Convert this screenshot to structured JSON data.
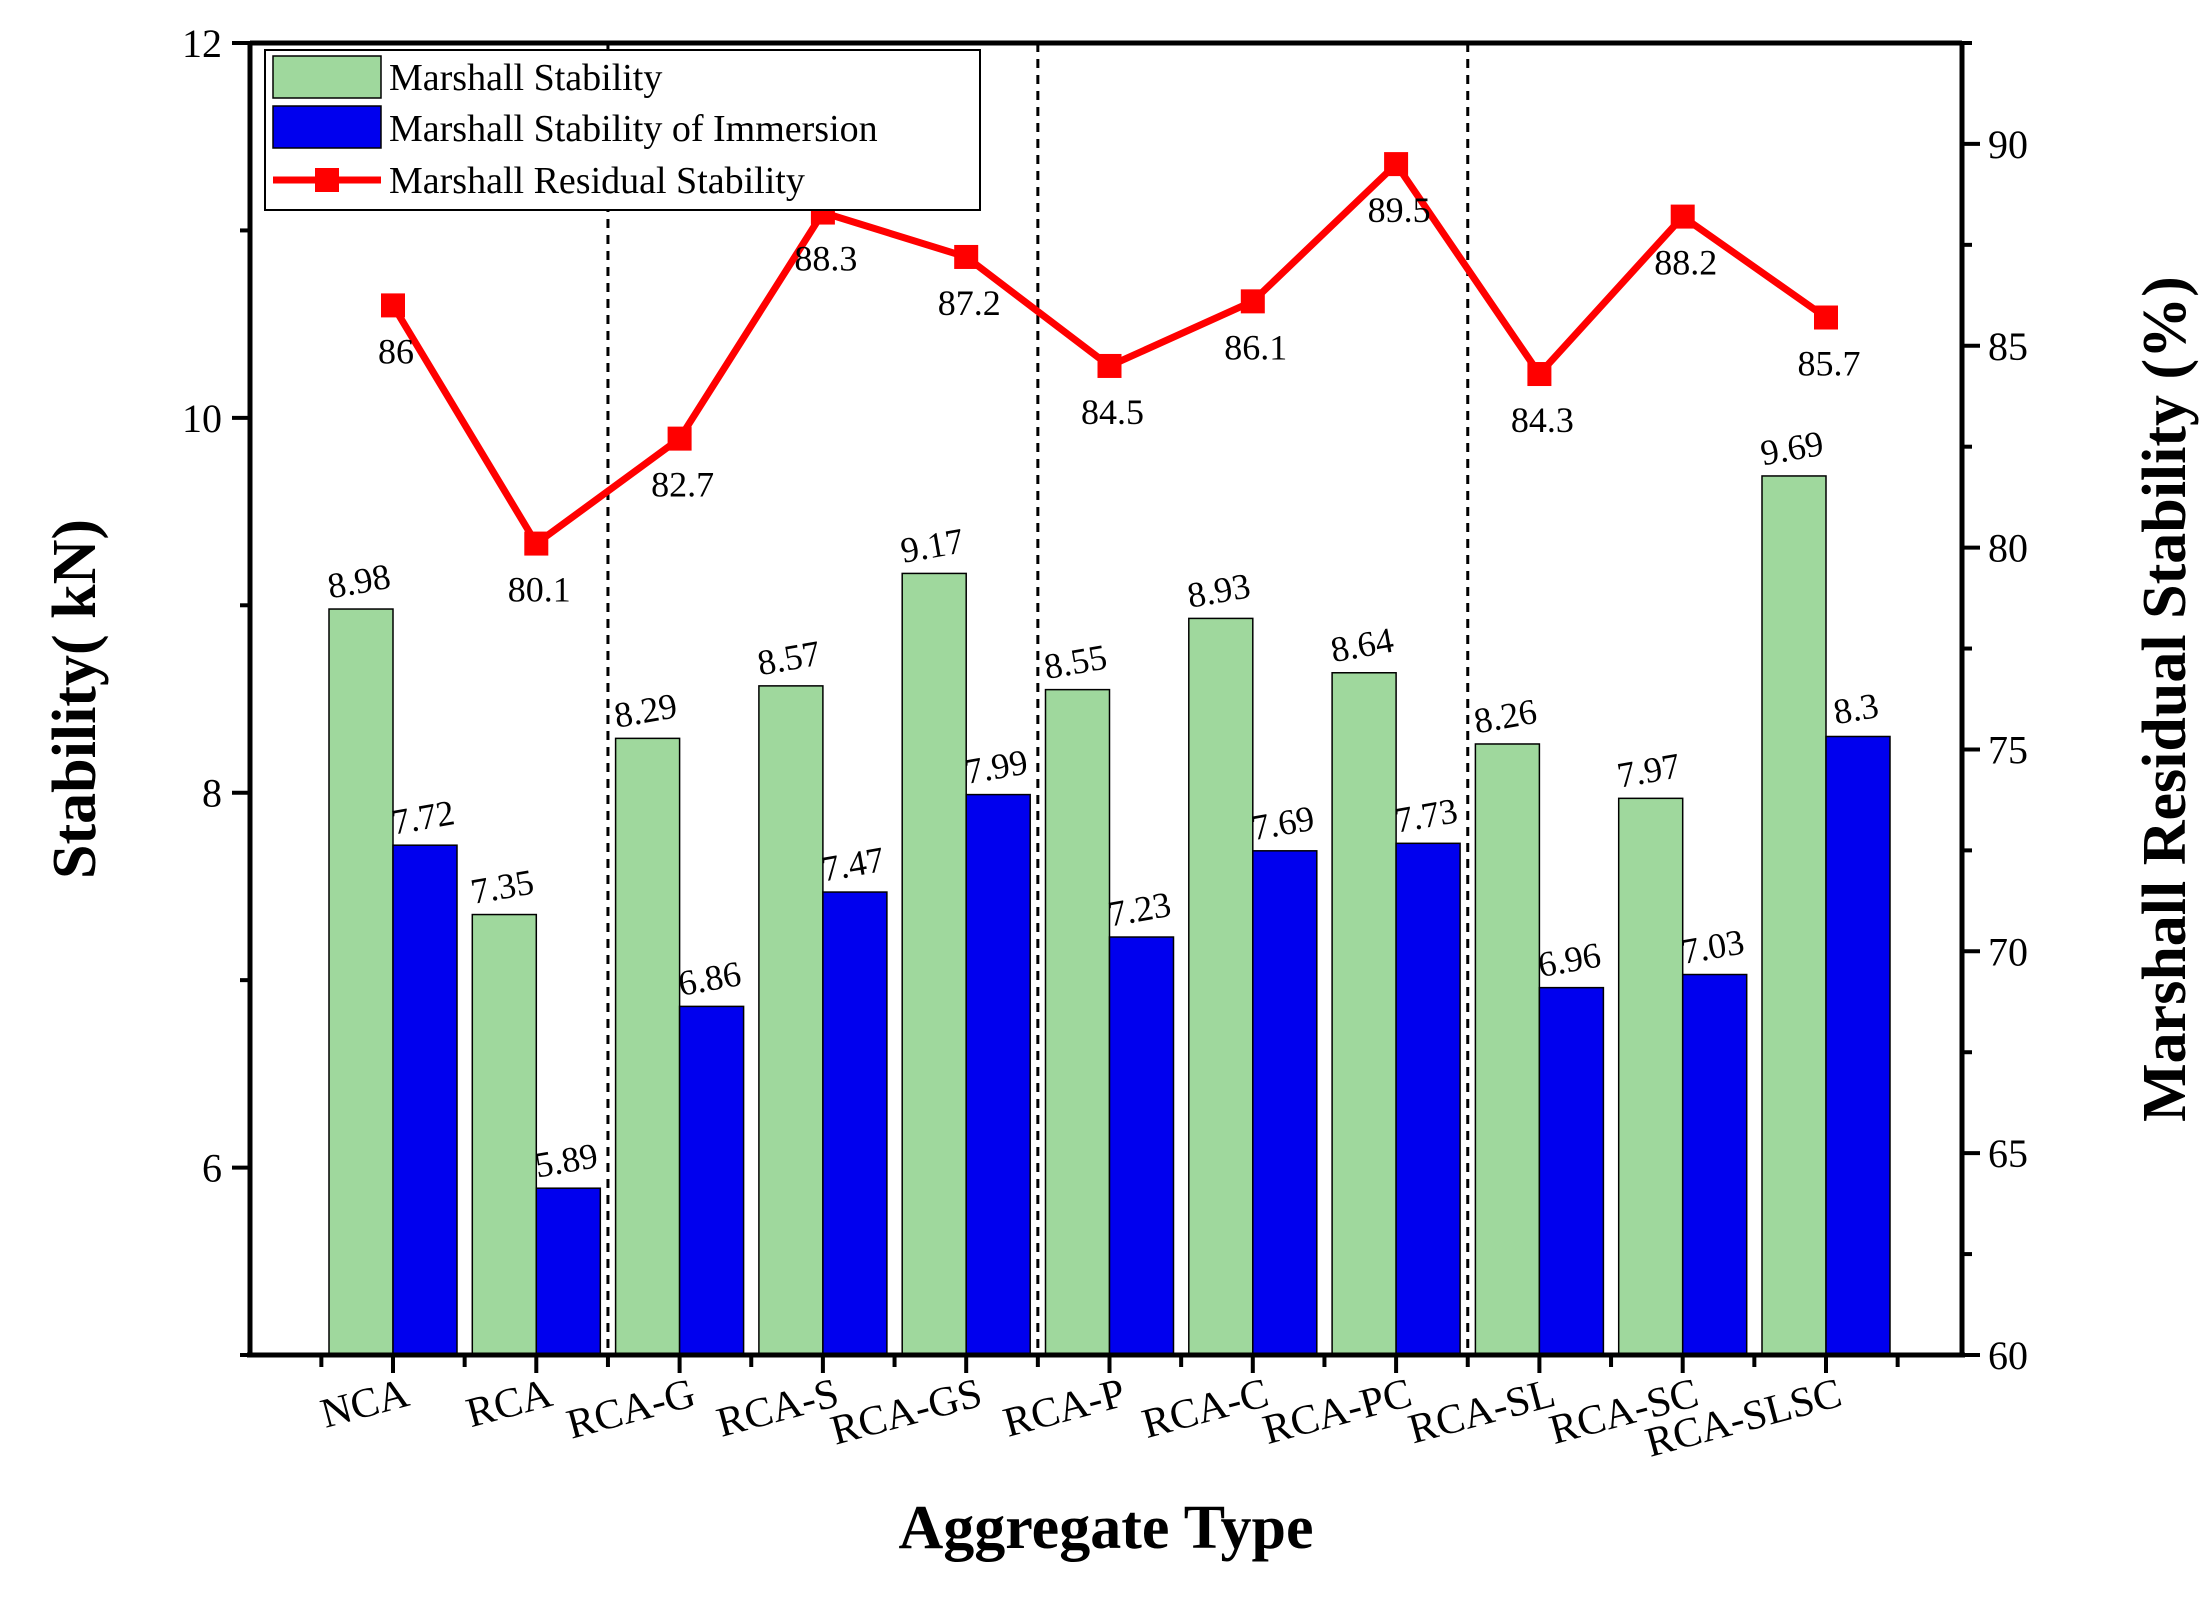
{
  "chart_data": {
    "type": "bar",
    "categories": [
      "NCA",
      "RCA",
      "RCA-G",
      "RCA-S",
      "RCA-GS",
      "RCA-P",
      "RCA-C",
      "RCA-PC",
      "RCA-SL",
      "RCA-SC",
      "RCA-SLSC"
    ],
    "series": [
      {
        "name": "Marshall Stability",
        "axis": "left",
        "kind": "bar",
        "color": "#9fd89d",
        "values": [
          8.98,
          7.35,
          8.29,
          8.57,
          9.17,
          8.55,
          8.93,
          8.64,
          8.26,
          7.97,
          9.69
        ],
        "labels": [
          "8.98",
          "7.35",
          "8.29",
          "8.57",
          "9.17",
          "8.55",
          "8.93",
          "8.64",
          "8.26",
          "7.97",
          "9.69"
        ]
      },
      {
        "name": "Marshall Stability of Immersion",
        "axis": "left",
        "kind": "bar",
        "color": "#0000ee",
        "values": [
          7.72,
          5.89,
          6.86,
          7.47,
          7.99,
          7.23,
          7.69,
          7.73,
          6.96,
          7.03,
          8.3
        ],
        "labels": [
          "7.72",
          "5.89",
          "6.86",
          "7.47",
          "7.99",
          "7.23",
          "7.69",
          "7.73",
          "6.96",
          "7.03",
          "8.3"
        ]
      },
      {
        "name": "Marshall Residual Stability",
        "axis": "right",
        "kind": "line",
        "color": "#ff0000",
        "values": [
          86,
          80.1,
          82.7,
          88.3,
          87.2,
          84.5,
          86.1,
          89.5,
          84.3,
          88.2,
          85.7
        ],
        "labels": [
          "86",
          "80.1",
          "82.7",
          "88.3",
          "87.2",
          "84.5",
          "86.1",
          "89.5",
          "84.3",
          "88.2",
          "85.7"
        ]
      }
    ],
    "xlabel": "Aggregate Type",
    "ylabel": "Stability( kN)",
    "y2label": "Marshall Residual Stability (%)",
    "ylim": [
      5,
      12
    ],
    "y2lim": [
      60,
      92.5
    ],
    "yticks": [
      6,
      8,
      10,
      12
    ],
    "yticks_labels": [
      "6",
      "8",
      "10",
      "12"
    ],
    "y2ticks": [
      60,
      65,
      70,
      75,
      80,
      85,
      90
    ],
    "y2ticks_labels": [
      "60",
      "65",
      "70",
      "75",
      "80",
      "85",
      "90"
    ],
    "group_dividers_after": [
      1,
      4,
      7
    ],
    "legend_position": "top-left",
    "grid": false
  }
}
